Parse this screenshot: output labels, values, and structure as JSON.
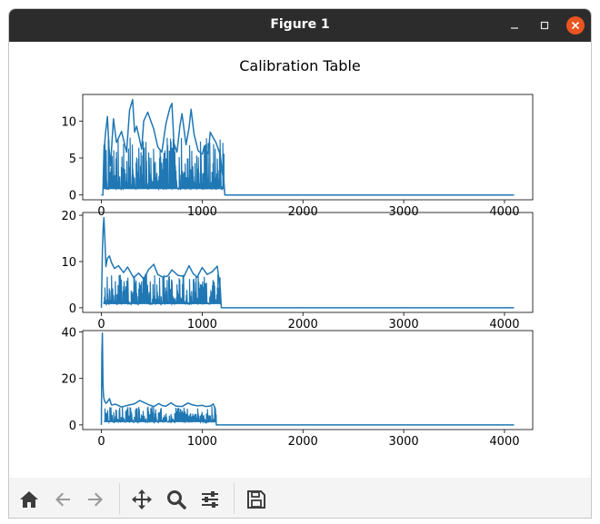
{
  "window": {
    "title": "Figure 1"
  },
  "figure": {
    "suptitle": "Calibration Table"
  },
  "toolbar": {
    "buttons": [
      {
        "name": "home-button",
        "icon": "home-icon"
      },
      {
        "name": "back-button",
        "icon": "arrow-left-icon"
      },
      {
        "name": "forward-button",
        "icon": "arrow-right-icon"
      },
      {
        "name": "pan-button",
        "icon": "move-icon"
      },
      {
        "name": "zoom-button",
        "icon": "magnifier-icon"
      },
      {
        "name": "configure-subplots-button",
        "icon": "sliders-icon"
      },
      {
        "name": "save-button",
        "icon": "floppy-disk-icon"
      }
    ]
  },
  "colors": {
    "line": "#1f77b4",
    "titlebar": "#2c2c2c",
    "close": "#e95420"
  },
  "chart_data": [
    {
      "type": "line",
      "xlim": [
        -185,
        4280
      ],
      "ylim": [
        -0.65,
        13.6
      ],
      "xticks": [
        0,
        1000,
        2000,
        3000,
        4000
      ],
      "yticks": [
        0,
        5,
        10
      ],
      "noise": {
        "x_range": [
          20,
          1220
        ],
        "base": 0.8,
        "typical_max": 7,
        "seed": 7
      },
      "x": [
        0,
        15,
        25,
        40,
        60,
        75,
        90,
        120,
        150,
        200,
        250,
        280,
        310,
        330,
        350,
        400,
        420,
        460,
        520,
        560,
        600,
        640,
        680,
        700,
        720,
        750,
        780,
        800,
        840,
        870,
        890,
        920,
        960,
        1000,
        1020,
        1060,
        1080,
        1100,
        1140,
        1180,
        1200,
        1215,
        1225,
        1235,
        4095
      ],
      "y": [
        0,
        0,
        5.7,
        8.2,
        10.6,
        6.6,
        3.9,
        10.3,
        7.1,
        8.6,
        5.8,
        11.5,
        12.9,
        8.5,
        9.3,
        6.2,
        10.0,
        11.2,
        8.9,
        6.5,
        5.8,
        9.6,
        11.8,
        12.4,
        7.0,
        5.8,
        9.4,
        11.0,
        6.8,
        9.1,
        11.6,
        8.2,
        6.0,
        5.5,
        6.5,
        5.5,
        8.5,
        8.0,
        7.0,
        5.4,
        3.0,
        2.0,
        0.0,
        0.0,
        0.0
      ]
    },
    {
      "type": "line",
      "xlim": [
        -185,
        4280
      ],
      "ylim": [
        -1.0,
        20.6
      ],
      "xticks": [
        0,
        1000,
        2000,
        3000,
        4000
      ],
      "yticks": [
        0,
        10,
        20
      ],
      "noise": {
        "x_range": [
          25,
          1180
        ],
        "base": 0.8,
        "typical_max": 6.5,
        "seed": 13
      },
      "x": [
        0,
        10,
        18,
        25,
        35,
        45,
        60,
        80,
        100,
        130,
        170,
        220,
        260,
        320,
        370,
        420,
        470,
        520,
        560,
        610,
        660,
        700,
        760,
        820,
        870,
        910,
        950,
        1000,
        1050,
        1100,
        1150,
        1180,
        1190,
        1200,
        4095
      ],
      "y": [
        0,
        12.0,
        17.2,
        19.5,
        14.8,
        8.9,
        10.7,
        11.2,
        9.8,
        8.5,
        9.1,
        7.6,
        8.8,
        6.5,
        7.5,
        6.2,
        8.3,
        9.4,
        7.2,
        6.6,
        6.9,
        8.2,
        7.0,
        6.8,
        9.1,
        7.4,
        6.6,
        8.7,
        7.2,
        7.8,
        9.0,
        4.0,
        0.0,
        0.0,
        0.0
      ]
    },
    {
      "type": "line",
      "xlim": [
        -185,
        4280
      ],
      "ylim": [
        -2.0,
        40.6
      ],
      "xticks": [
        0,
        1000,
        2000,
        3000,
        4000
      ],
      "yticks": [
        0,
        20,
        40
      ],
      "noise": {
        "x_range": [
          30,
          1140
        ],
        "base": 1.2,
        "typical_max": 7,
        "seed": 29
      },
      "x": [
        0,
        5,
        10,
        16,
        22,
        30,
        45,
        60,
        80,
        100,
        140,
        200,
        260,
        330,
        380,
        420,
        470,
        520,
        570,
        600,
        640,
        690,
        740,
        800,
        860,
        900,
        950,
        1000,
        1040,
        1080,
        1110,
        1130,
        1140,
        1150,
        4095
      ],
      "y": [
        0,
        31.0,
        39.5,
        17.4,
        12.1,
        10.5,
        9.3,
        9.8,
        11.3,
        8.6,
        8.9,
        7.7,
        8.4,
        9.1,
        10.5,
        9.7,
        8.7,
        7.9,
        9.2,
        8.4,
        8.0,
        9.5,
        8.1,
        7.9,
        9.4,
        8.7,
        8.2,
        8.4,
        7.9,
        8.1,
        9.0,
        7.0,
        0.0,
        0.0,
        0.0
      ]
    }
  ]
}
